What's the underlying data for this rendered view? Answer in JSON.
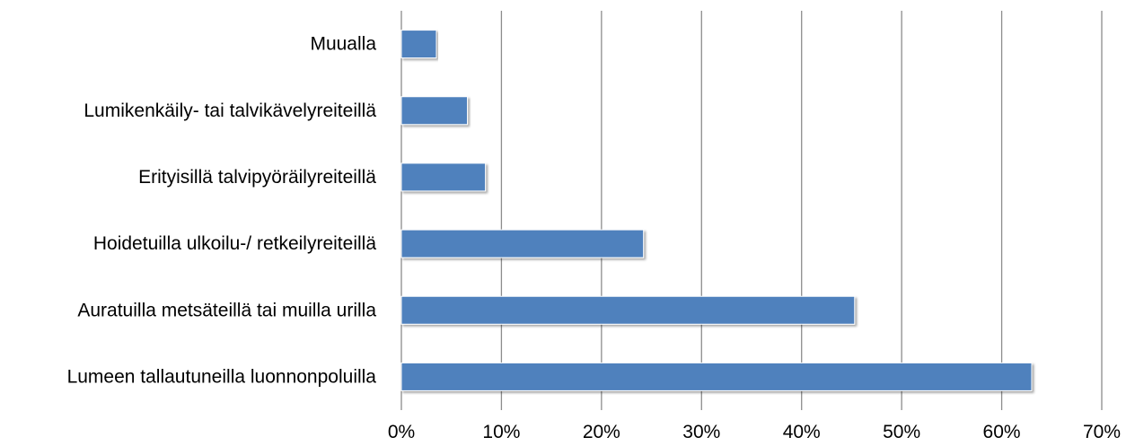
{
  "chart_data": {
    "type": "bar",
    "orientation": "horizontal",
    "title": "",
    "xlabel": "",
    "ylabel": "",
    "categories": [
      "Lumeen tallautuneilla luonnonpoluilla",
      "Auratuilla metsäteillä tai muilla urilla",
      "Hoidetuilla ulkoilu-/ retkeilyreiteillä",
      "Erityisillä talvipyöräilyreiteillä",
      "Lumikenkäily- tai talvikävelyreiteillä",
      "Muualla"
    ],
    "values": [
      63,
      45.3,
      24.2,
      8.4,
      6.6,
      3.5
    ],
    "xlim": [
      0,
      70
    ],
    "x_ticks": [
      0,
      10,
      20,
      30,
      40,
      50,
      60,
      70
    ],
    "x_tick_labels": [
      "0%",
      "10%",
      "20%",
      "30%",
      "40%",
      "50%",
      "60%",
      "70%"
    ],
    "grid": "vertical",
    "legend": "none",
    "bar_color": "#4f81bd"
  }
}
